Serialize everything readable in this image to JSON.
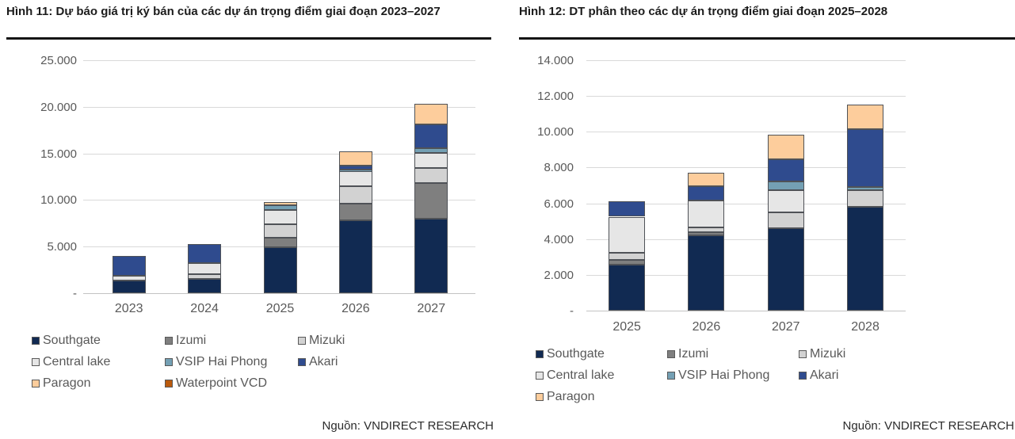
{
  "chart_data": [
    {
      "type": "bar",
      "stacked": true,
      "title": "Hình 11: Dự báo giá trị ký bán của các dự án trọng điểm giai đoạn 2023–2027",
      "source": "Nguồn: VNDIRECT RESEARCH",
      "categories": [
        "2023",
        "2024",
        "2025",
        "2026",
        "2027"
      ],
      "series": [
        {
          "name": "Southgate",
          "color": "#112a52",
          "values": [
            1400,
            1500,
            4950,
            7800,
            8000
          ]
        },
        {
          "name": "Izumi",
          "color": "#7f7f7f",
          "values": [
            0,
            0,
            1000,
            1800,
            3800
          ]
        },
        {
          "name": "Mizuki",
          "color": "#d2d2d2",
          "values": [
            0,
            550,
            1450,
            1850,
            1650
          ]
        },
        {
          "name": "Central lake",
          "color": "#e6e6e6",
          "values": [
            500,
            1150,
            1550,
            1700,
            1600
          ]
        },
        {
          "name": "VSIP Hai Phong",
          "color": "#74a0b4",
          "values": [
            0,
            0,
            450,
            100,
            500
          ]
        },
        {
          "name": "Akari",
          "color": "#2f4b8e",
          "values": [
            2100,
            2100,
            0,
            450,
            2550
          ]
        },
        {
          "name": "Paragon",
          "color": "#fdcd9c",
          "values": [
            0,
            0,
            400,
            1500,
            2200
          ]
        },
        {
          "name": "Waterpoint VCD",
          "color": "#ba5a0d",
          "values": [
            0,
            0,
            0,
            0,
            0
          ]
        }
      ],
      "ylim": [
        0,
        25000
      ],
      "yticks_labels": [
        "-",
        "5.000",
        "10.000",
        "15.000",
        "20.000",
        "25.000"
      ],
      "grid": true,
      "legend_position": "bottom"
    },
    {
      "type": "bar",
      "stacked": true,
      "title": "Hình 12: DT phân theo các dự án trọng điểm giai đoạn 2025–2028",
      "source": "Nguồn: VNDIRECT RESEARCH",
      "categories": [
        "2025",
        "2026",
        "2027",
        "2028"
      ],
      "series": [
        {
          "name": "Southgate",
          "color": "#112a52",
          "values": [
            2550,
            4200,
            4600,
            5800
          ]
        },
        {
          "name": "Izumi",
          "color": "#7f7f7f",
          "values": [
            300,
            200,
            0,
            0
          ]
        },
        {
          "name": "Mizuki",
          "color": "#d2d2d2",
          "values": [
            400,
            250,
            900,
            950
          ]
        },
        {
          "name": "Central lake",
          "color": "#e6e6e6",
          "values": [
            2000,
            1500,
            1250,
            0
          ]
        },
        {
          "name": "VSIP Hai Phong",
          "color": "#74a0b4",
          "values": [
            0,
            0,
            450,
            150
          ]
        },
        {
          "name": "Akari",
          "color": "#2f4b8e",
          "values": [
            850,
            800,
            1250,
            3250
          ]
        },
        {
          "name": "Paragon",
          "color": "#fdcd9c",
          "values": [
            0,
            750,
            1400,
            1350
          ]
        }
      ],
      "ylim": [
        0,
        14000
      ],
      "yticks_labels": [
        "-",
        "2.000",
        "4.000",
        "6.000",
        "8.000",
        "10.000",
        "12.000",
        "14.000"
      ],
      "grid": true,
      "legend_position": "bottom"
    }
  ]
}
